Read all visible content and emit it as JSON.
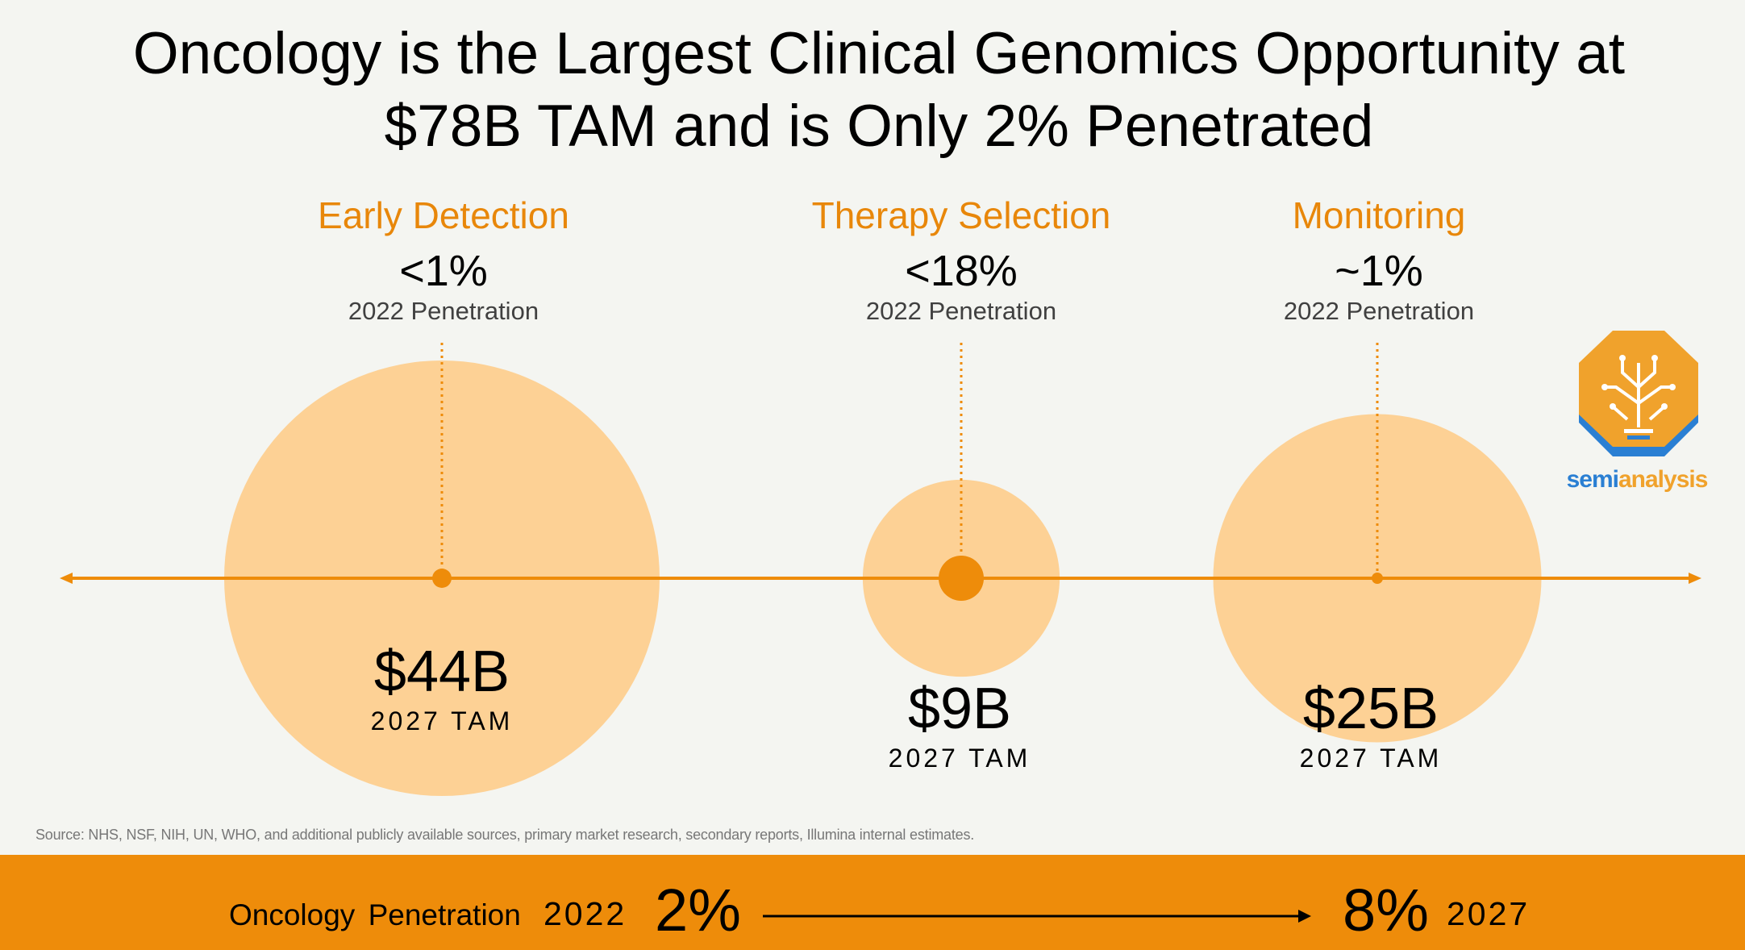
{
  "title_line1": "Oncology is the Largest Clinical Genomics Opportunity at",
  "title_line2": "$78B TAM and is Only 2% Penetrated",
  "chart_data": {
    "type": "bubble",
    "colors": {
      "accent": "#ee8c0a",
      "bubble": "#fdd195",
      "heading": "#e8870a"
    },
    "segments": [
      {
        "category": "Early Detection",
        "penetration": "<1%",
        "penetration_label": "2022 Penetration",
        "tam": "$44B",
        "tam_value": 44,
        "tam_label": "2027 TAM",
        "penetration_value": 1
      },
      {
        "category": "Therapy Selection",
        "penetration": "<18%",
        "penetration_label": "2022 Penetration",
        "tam": "$9B",
        "tam_value": 9,
        "tam_label": "2027 TAM",
        "penetration_value": 18
      },
      {
        "category": "Monitoring",
        "penetration": "~1%",
        "penetration_label": "2022 Penetration",
        "tam": "$25B",
        "tam_value": 25,
        "tam_label": "2027 TAM",
        "penetration_value": 1
      }
    ]
  },
  "logo": {
    "text_part1": "semi",
    "text_part2": "analysis"
  },
  "source": "Source: NHS, NSF, NIH, UN, WHO, and additional publicly available sources, primary market research, secondary reports, Illumina internal estimates.",
  "footer": {
    "label": "Oncology Penetration",
    "year_start": "2022",
    "value_start": "2%",
    "value_end": "8%",
    "year_end": "2027"
  }
}
